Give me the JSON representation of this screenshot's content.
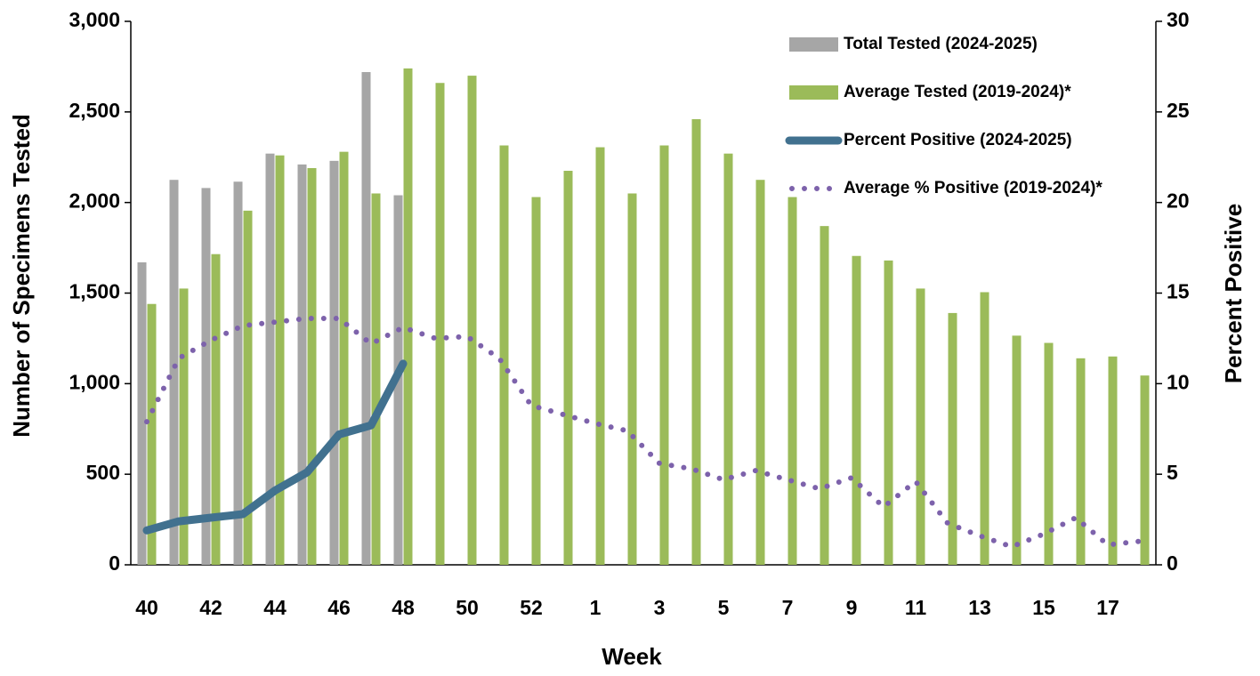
{
  "chart_data": {
    "type": "bar",
    "xlabel": "Week",
    "ylabel": "Number of Specimens Tested",
    "y2label": "Percent Positive",
    "categories": [
      "40",
      null,
      "42",
      null,
      "44",
      null,
      "46",
      null,
      "48",
      null,
      "50",
      null,
      "52",
      null,
      "1",
      null,
      "3",
      null,
      "5",
      null,
      "7",
      null,
      "9",
      null,
      "11",
      null,
      "13",
      null,
      "15",
      null,
      "17",
      null
    ],
    "ylim": [
      0,
      3000
    ],
    "yticks": [
      0,
      500,
      {
        "value": 1000,
        "label": "1,000"
      },
      {
        "value": 1500,
        "label": "1,500"
      },
      {
        "value": 2000,
        "label": "2,000"
      },
      {
        "value": 2500,
        "label": "2,500"
      },
      {
        "value": 3000,
        "label": "3,000"
      }
    ],
    "y2lim": [
      0,
      30
    ],
    "y2ticks": [
      0,
      5,
      10,
      15,
      20,
      25,
      30
    ],
    "legend": "top-right",
    "series": [
      {
        "name": "Total Tested (2024-2025)",
        "type": "bar",
        "color": "#a6a6a6",
        "values": [
          1670,
          2125,
          2080,
          2115,
          2270,
          2210,
          2230,
          2720,
          2040,
          null,
          null,
          null,
          null,
          null,
          null,
          null,
          null,
          null,
          null,
          null,
          null,
          null,
          null,
          null,
          null,
          null,
          null,
          null,
          null,
          null,
          null,
          null
        ]
      },
      {
        "name": "Average Tested (2019-2024)*",
        "type": "bar",
        "color": "#9bbb59",
        "values": [
          1440,
          1525,
          1715,
          1955,
          2260,
          2190,
          2280,
          2050,
          2740,
          2660,
          2700,
          2315,
          2030,
          2175,
          2305,
          2050,
          2315,
          2460,
          2270,
          2125,
          2030,
          1870,
          1705,
          1680,
          1525,
          1390,
          1505,
          1265,
          1225,
          1140,
          1150,
          1045
        ]
      },
      {
        "name": "Percent Positive (2024-2025)",
        "type": "line",
        "style": "solid",
        "axis": "y2",
        "color": "#41718f",
        "values": [
          1.9,
          2.4,
          2.6,
          2.8,
          4.1,
          5.1,
          7.2,
          7.7,
          11.1,
          null,
          null,
          null,
          null,
          null,
          null,
          null,
          null,
          null,
          null,
          null,
          null,
          null,
          null,
          null,
          null,
          null,
          null,
          null,
          null,
          null,
          null,
          null
        ]
      },
      {
        "name": "Average % Positive (2019-2024)*",
        "type": "line",
        "style": "dotted",
        "axis": "y2",
        "color": "#7d62ab",
        "values": [
          7.9,
          11.4,
          12.4,
          13.2,
          13.4,
          13.6,
          13.6,
          12.2,
          13.1,
          12.5,
          12.6,
          11.4,
          8.8,
          8.3,
          7.8,
          7.4,
          5.6,
          5.3,
          4.7,
          5.2,
          4.7,
          4.2,
          4.8,
          3.2,
          4.6,
          2.3,
          1.6,
          1.0,
          1.7,
          2.6,
          1.1,
          1.3
        ]
      }
    ]
  }
}
